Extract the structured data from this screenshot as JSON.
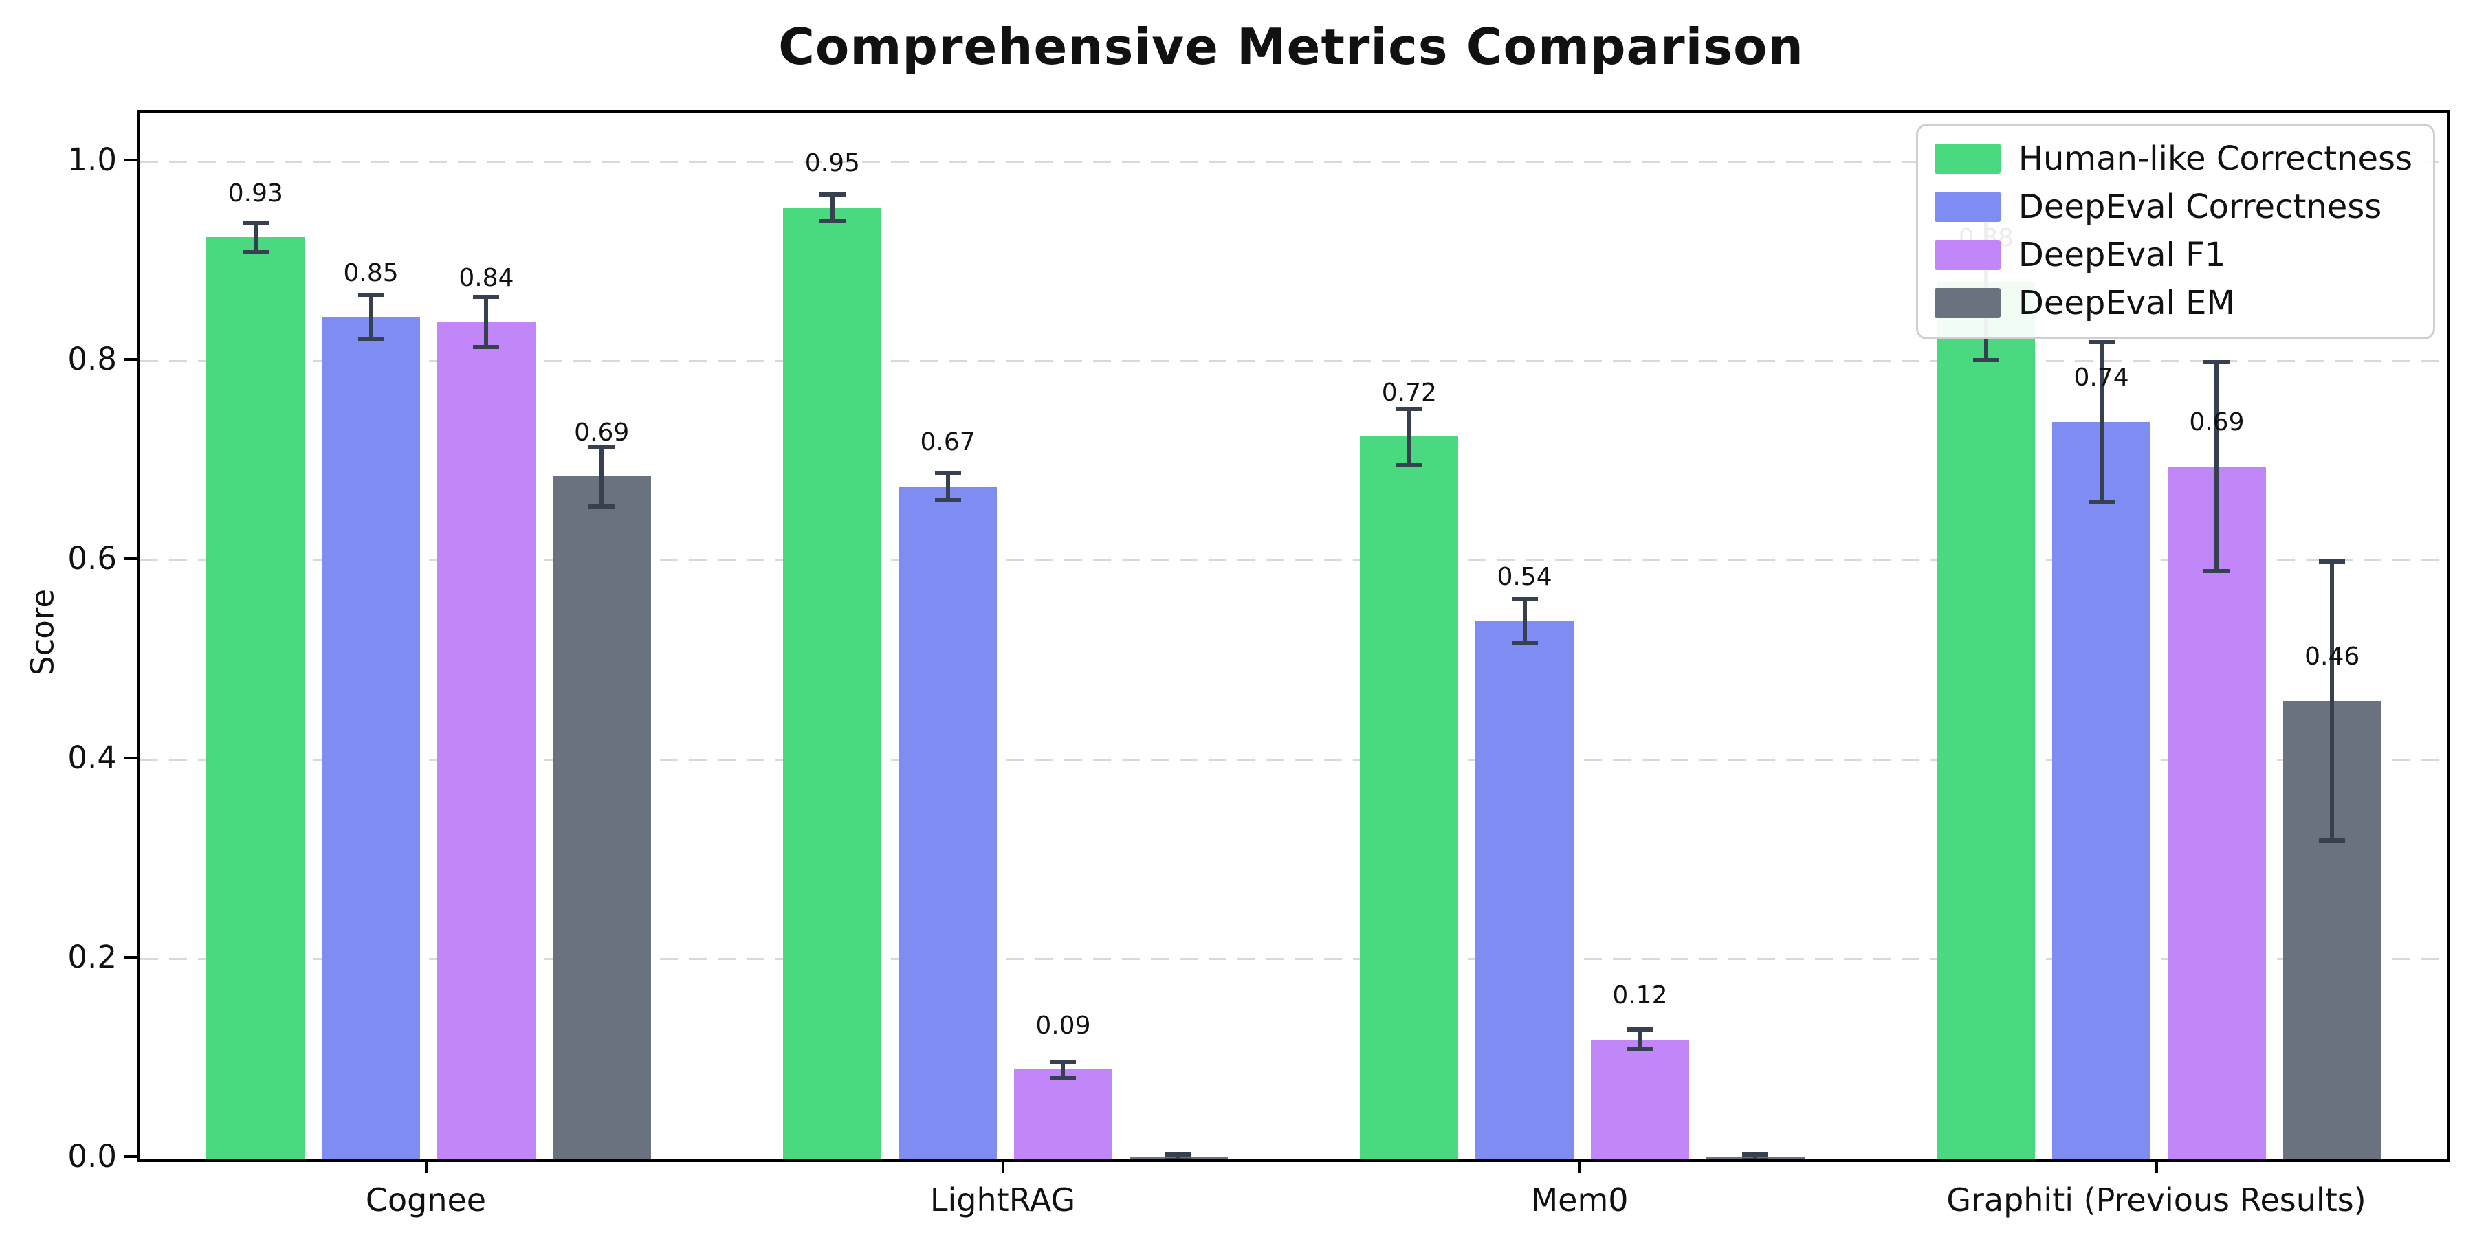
{
  "title": "Comprehensive Metrics Comparison",
  "ylabel": "Score",
  "chart_data": {
    "type": "bar",
    "categories": [
      "Cognee",
      "LightRAG",
      "Mem0",
      "Graphiti (Previous Results)"
    ],
    "series": [
      {
        "name": "Human-like Correctness",
        "color": "#4ad981",
        "values": [
          0.925,
          0.955,
          0.725,
          0.88
        ],
        "labels": [
          "0.93",
          "0.95",
          "0.72",
          "0.88"
        ],
        "errors": [
          0.015,
          0.013,
          0.028,
          0.078
        ]
      },
      {
        "name": "DeepEval Correctness",
        "color": "#7f8df3",
        "values": [
          0.845,
          0.675,
          0.54,
          0.74
        ],
        "labels": [
          "0.85",
          "0.67",
          "0.54",
          "0.74"
        ],
        "errors": [
          0.022,
          0.014,
          0.022,
          0.08
        ]
      },
      {
        "name": "DeepEval F1",
        "color": "#c186f8",
        "values": [
          0.84,
          0.09,
          0.12,
          0.695
        ],
        "labels": [
          "0.84",
          "0.09",
          "0.12",
          "0.69"
        ],
        "errors": [
          0.025,
          0.008,
          0.01,
          0.105
        ]
      },
      {
        "name": "DeepEval EM",
        "color": "#6a7280",
        "values": [
          0.685,
          0.002,
          0.002,
          0.46
        ],
        "labels": [
          "0.69",
          "",
          "",
          "0.46"
        ],
        "errors": [
          0.03,
          0.003,
          0.003,
          0.14
        ]
      }
    ],
    "ylim": [
      0,
      1.05
    ],
    "yticks": [
      0.0,
      0.2,
      0.4,
      0.6,
      0.8,
      1.0
    ],
    "ytick_labels": [
      "0.0",
      "0.2",
      "0.4",
      "0.6",
      "0.8",
      "1.0"
    ],
    "grid": "horizontal-dashed",
    "legend_position": "upper-right",
    "error_bar_color": "#36404e",
    "value_label_offset": 0.03
  }
}
